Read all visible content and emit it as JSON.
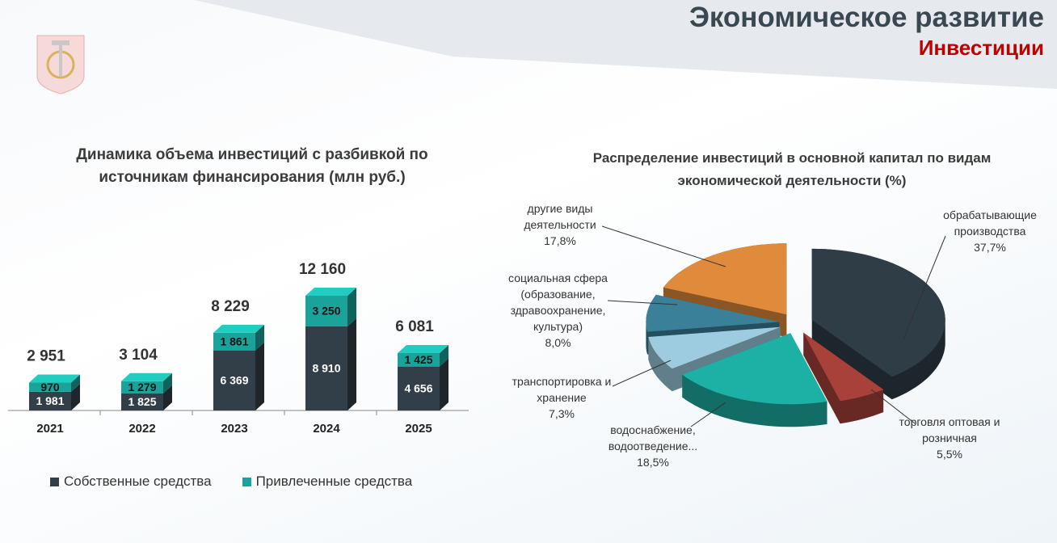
{
  "header": {
    "title": "Экономическое развитие",
    "subtitle": "Инвестиции"
  },
  "chart_data": [
    {
      "type": "bar",
      "stacked": true,
      "title": "Динамика объема инвестиций с разбивкой по источникам финансирования (млн руб.)",
      "categories": [
        "2021",
        "2022",
        "2023",
        "2024",
        "2025"
      ],
      "series": [
        {
          "name": "Собственные средства",
          "color": "#323f48",
          "values": [
            1981,
            1825,
            6369,
            8910,
            4656
          ],
          "value_labels": [
            "1 981",
            "1 825",
            "6 369",
            "8 910",
            "4 656"
          ]
        },
        {
          "name": "Привлеченные средства",
          "color": "#1aa39a",
          "values": [
            970,
            1279,
            1861,
            3250,
            1425
          ],
          "value_labels": [
            "970",
            "1 279",
            "1 861",
            "3 250",
            "1 425"
          ]
        }
      ],
      "totals": [
        2951,
        3104,
        8229,
        12160,
        6081
      ],
      "total_labels": [
        "2 951",
        "3 104",
        "8 229",
        "12 160",
        "6 081"
      ],
      "legend": "bottom"
    },
    {
      "type": "pie",
      "exploded": true,
      "title": "Распределение инвестиций в основной капитал по видам экономической деятельности (%)",
      "categories": [
        "обрабатывающие производства",
        "торговля оптовая и розничная",
        "водоснабжение, водоотведение...",
        "транспортировка и хранение",
        "социальная сфера (образование, здравоохранение, культура)",
        "другие виды деятельности"
      ],
      "values": [
        37.7,
        5.5,
        18.5,
        7.3,
        8.0,
        17.8
      ],
      "value_labels": [
        "37,7%",
        "5,5%",
        "18,5%",
        "7,3%",
        "8,0%",
        "17,8%"
      ],
      "colors": [
        "#2f3d47",
        "#a8413a",
        "#1db0a5",
        "#9dcbe0",
        "#3a8099",
        "#e08a3c"
      ]
    }
  ]
}
